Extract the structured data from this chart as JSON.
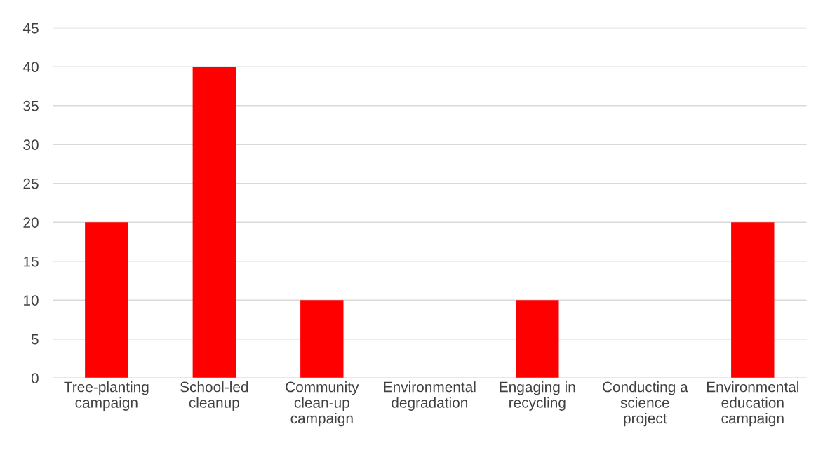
{
  "chart_data": {
    "type": "bar",
    "categories": [
      "Tree-planting\ncampaign",
      "School-led\ncleanup",
      "Community\nclean-up\ncampaign",
      "Environmental\ndegradation",
      "Engaging in\nrecycling",
      "Conducting a\nscience\nproject",
      "Environmental\neducation\ncampaign"
    ],
    "values": [
      20,
      40,
      10,
      0,
      10,
      0,
      20
    ],
    "color": "#ff0000",
    "ylim": [
      0,
      45
    ],
    "yticks": [
      0,
      5,
      10,
      15,
      20,
      25,
      30,
      35,
      40,
      45
    ],
    "grid": "y"
  }
}
